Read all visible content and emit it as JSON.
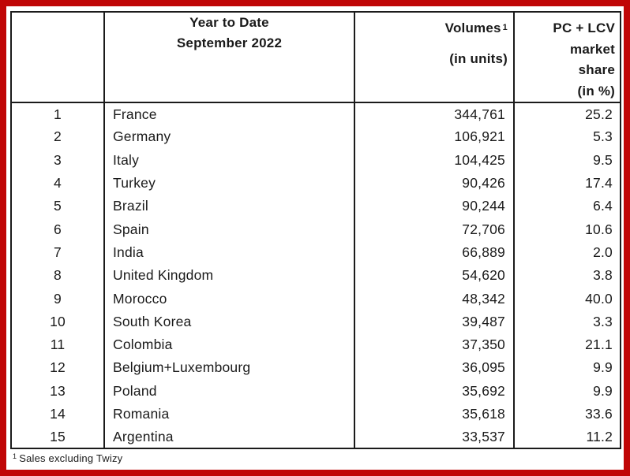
{
  "frame": {
    "border_color": "#c00606",
    "line_color": "#1b1b1b"
  },
  "table": {
    "header": {
      "period_line1": "Year to Date",
      "period_line2": "September 2022",
      "volumes_label": "Volumes",
      "volumes_superscript": "1",
      "volumes_unit": "(in units)",
      "share_line1": "PC + LCV",
      "share_line2": "market",
      "share_line3": "share",
      "share_line4": "(in %)"
    },
    "rows": [
      {
        "rank": "1",
        "country": "France",
        "volume": "344,761",
        "share": "25.2"
      },
      {
        "rank": "2",
        "country": "Germany",
        "volume": "106,921",
        "share": "5.3"
      },
      {
        "rank": "3",
        "country": "Italy",
        "volume": "104,425",
        "share": "9.5"
      },
      {
        "rank": "4",
        "country": "Turkey",
        "volume": "90,426",
        "share": "17.4"
      },
      {
        "rank": "5",
        "country": "Brazil",
        "volume": "90,244",
        "share": "6.4"
      },
      {
        "rank": "6",
        "country": "Spain",
        "volume": "72,706",
        "share": "10.6"
      },
      {
        "rank": "7",
        "country": "India",
        "volume": "66,889",
        "share": "2.0"
      },
      {
        "rank": "8",
        "country": "United Kingdom",
        "volume": "54,620",
        "share": "3.8"
      },
      {
        "rank": "9",
        "country": "Morocco",
        "volume": "48,342",
        "share": "40.0"
      },
      {
        "rank": "10",
        "country": "South Korea",
        "volume": "39,487",
        "share": "3.3"
      },
      {
        "rank": "11",
        "country": "Colombia",
        "volume": "37,350",
        "share": "21.1"
      },
      {
        "rank": "12",
        "country": "Belgium+Luxembourg",
        "volume": "36,095",
        "share": "9.9"
      },
      {
        "rank": "13",
        "country": "Poland",
        "volume": "35,692",
        "share": "9.9"
      },
      {
        "rank": "14",
        "country": "Romania",
        "volume": "35,618",
        "share": "33.6"
      },
      {
        "rank": "15",
        "country": "Argentina",
        "volume": "33,537",
        "share": "11.2"
      }
    ]
  },
  "footnote": {
    "superscript": "1",
    "text": "Sales excluding Twizy"
  }
}
